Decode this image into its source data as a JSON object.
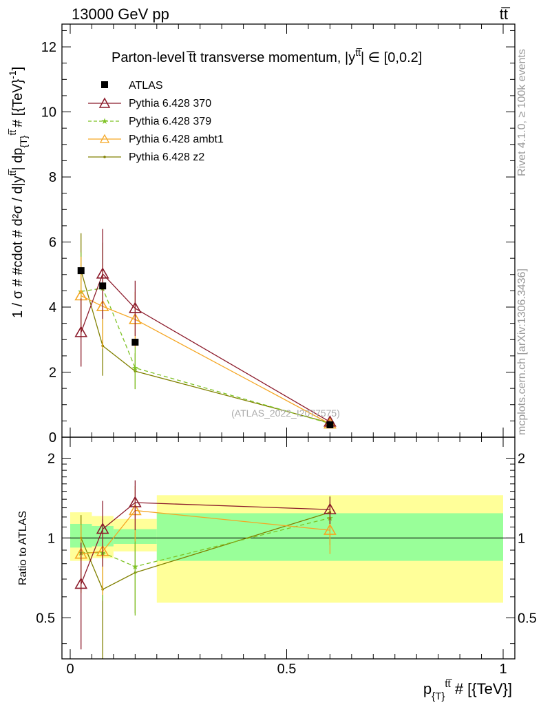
{
  "header": {
    "left": "13000 GeV pp",
    "right": "tt̅"
  },
  "side_labels": {
    "rivet": "Rivet 4.1.0, ≥ 100k events",
    "mcplots": "mcplots.cern.ch [arXiv:1306.3436]"
  },
  "watermark": "(ATLAS_2022_I2077575)",
  "chart_data": [
    {
      "type": "line",
      "title": "Parton-level t̅t transverse momentum, |y^{t̅t}| ∈ [0,0.2]",
      "title_text": "Parton-level t̅t transverse momentum, |y",
      "title_sup": "tt̅",
      "title_end": "| ∈ [0,0.2]",
      "ylabel": "1 / σ # #cdot # d²σ / d|y^{tt̅}| dp_{T}^{tt̅} # [{TeV}⁻¹]",
      "ylabel_text": "1 / σ # #cdot # d²σ / d|y",
      "ylabel_mid": "| dp",
      "ylabel_sub": "{T}",
      "ylabel_end": "# [{TeV}",
      "ylabel_end2": "]",
      "ylabel_exp": "-1",
      "xlim": [
        0,
        1
      ],
      "ylim": [
        0,
        12.7
      ],
      "yticks": [
        0,
        2,
        4,
        6,
        8,
        10,
        12
      ],
      "ytick_labels": [
        "0",
        "2",
        "4",
        "6",
        "8",
        "10",
        "12"
      ],
      "legend_position": "top-left",
      "series": [
        {
          "name": "ATLAS",
          "color": "#000000",
          "marker": "square",
          "x": [
            0.025,
            0.075,
            0.15,
            0.6
          ],
          "y": [
            5.12,
            4.65,
            2.92,
            0.38
          ],
          "err": [
            0.0,
            0.0,
            0.0,
            0.0
          ]
        },
        {
          "name": "Pythia 6.428 370",
          "color": "#8b1a2a",
          "marker": "triangle",
          "x": [
            0.025,
            0.075,
            0.15,
            0.6
          ],
          "y": [
            3.22,
            5.02,
            3.96,
            0.47
          ],
          "err": [
            1.05,
            1.38,
            0.85,
            0.05
          ]
        },
        {
          "name": "Pythia 6.428 379",
          "color": "#7ec225",
          "marker": "star",
          "dashed": true,
          "x": [
            0.025,
            0.075,
            0.15,
            0.6
          ],
          "y": [
            4.48,
            4.58,
            2.13,
            0.42
          ],
          "err": [
            1.2,
            1.4,
            0.65,
            0.05
          ]
        },
        {
          "name": "Pythia 6.428 ambt1",
          "color": "#f5a623",
          "marker": "triangle",
          "x": [
            0.025,
            0.075,
            0.15,
            0.6
          ],
          "y": [
            4.35,
            4.02,
            3.62,
            0.41
          ],
          "err": [
            1.2,
            1.3,
            0.85,
            0.05
          ]
        },
        {
          "name": "Pythia 6.428 z2",
          "color": "#808000",
          "marker": "dot",
          "x": [
            0.025,
            0.075,
            0.15,
            0.6
          ],
          "y": [
            5.12,
            2.81,
            2.03,
            0.44
          ],
          "err": [
            1.15,
            0.92,
            0.55,
            0.05
          ]
        }
      ]
    },
    {
      "type": "line",
      "title": "Ratio to ATLAS",
      "ylabel": "Ratio to ATLAS",
      "xlabel": "p_{T}^{tt̅} # [{TeV}]",
      "xlabel_text": "p",
      "xlabel_sub": "{T}",
      "xlabel_sup": "tt̅",
      "xlabel_end": " # [{TeV}]",
      "xlim": [
        0,
        1
      ],
      "ylim": [
        0.35,
        2.4
      ],
      "yscale": "log",
      "yticks": [
        0.5,
        1,
        2
      ],
      "ytick_labels": [
        "0.5",
        "1",
        "2"
      ],
      "xticks": [
        0,
        0.5,
        1
      ],
      "xtick_labels": [
        "0",
        "0.5",
        "1"
      ],
      "reference_line": 1,
      "bands": [
        {
          "name": "yellow band",
          "color": "#ffff99",
          "bins": [
            [
              0,
              0.05,
              0.82,
              1.25
            ],
            [
              0.05,
              0.1,
              0.84,
              1.21
            ],
            [
              0.1,
              0.2,
              0.89,
              1.18
            ],
            [
              0.2,
              1.0,
              0.57,
              1.45
            ]
          ]
        },
        {
          "name": "green band",
          "color": "#99ff99",
          "bins": [
            [
              0,
              0.05,
              0.92,
              1.13
            ],
            [
              0.05,
              0.1,
              0.93,
              1.11
            ],
            [
              0.1,
              0.2,
              0.95,
              1.08
            ],
            [
              0.2,
              1.0,
              0.82,
              1.24
            ]
          ]
        }
      ],
      "series": [
        {
          "name": "Pythia 6.428 370",
          "color": "#8b1a2a",
          "marker": "triangle",
          "x": [
            0.025,
            0.075,
            0.15,
            0.6
          ],
          "y": [
            0.67,
            1.08,
            1.36,
            1.28
          ],
          "err_lo": [
            0.29,
            0.3,
            0.29,
            0.15
          ],
          "err_hi": [
            0.29,
            0.3,
            0.29,
            0.15
          ]
        },
        {
          "name": "Pythia 6.428 379",
          "color": "#7ec225",
          "marker": "star",
          "dashed": true,
          "x": [
            0.025,
            0.075,
            0.15,
            0.6
          ],
          "y": [
            0.88,
            0.88,
            0.78,
            1.19
          ],
          "err_lo": [
            0.25,
            0.3,
            0.27,
            0.25
          ],
          "err_hi": [
            0.25,
            0.3,
            0.27,
            0.25
          ]
        },
        {
          "name": "Pythia 6.428 ambt1",
          "color": "#f5a623",
          "marker": "triangle",
          "x": [
            0.025,
            0.075,
            0.15,
            0.6
          ],
          "y": [
            0.87,
            0.89,
            1.27,
            1.07
          ],
          "err_lo": [
            0.25,
            0.28,
            0.3,
            0.2
          ],
          "err_hi": [
            0.25,
            0.28,
            0.3,
            0.2
          ]
        },
        {
          "name": "Pythia 6.428 z2",
          "color": "#808000",
          "marker": "dot",
          "x": [
            0.025,
            0.075,
            0.15,
            0.6
          ],
          "y": [
            1.0,
            0.64,
            0.74,
            1.25
          ],
          "err_lo": [
            0.22,
            0.32,
            0.22,
            0.12
          ],
          "err_hi": [
            0.22,
            0.32,
            0.22,
            0.12
          ]
        }
      ]
    }
  ]
}
